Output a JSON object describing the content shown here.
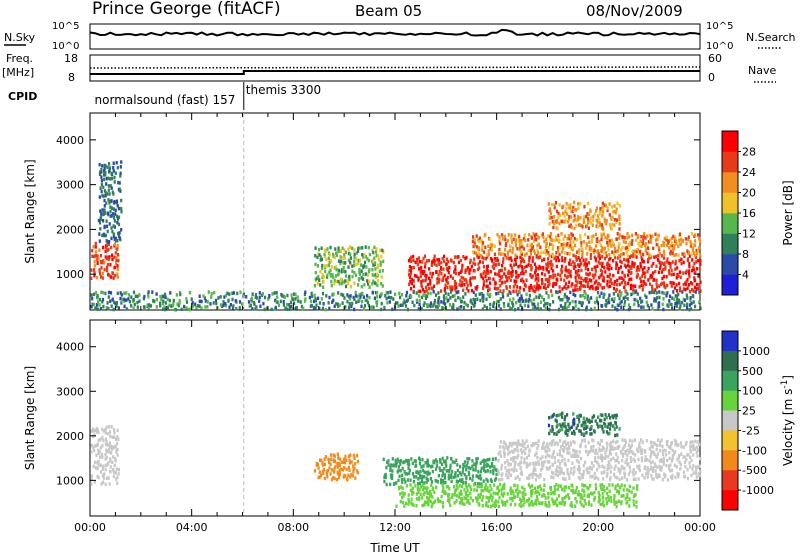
{
  "header": {
    "station": "Prince George (fitACF)",
    "beam": "Beam 05",
    "date": "08/Nov/2009"
  },
  "status_panels": {
    "nsky_label": "N.Sky",
    "nsearch_label": "N.Search",
    "noise_ticks": [
      "10^5",
      "10^0"
    ],
    "freq_label": "Freq.",
    "freq_unit": "[MHz]",
    "freq_ticks": [
      "18",
      "8"
    ],
    "nave_label": "Nave",
    "nave_ticks": [
      "60",
      "0"
    ],
    "cpid_label": "CPID",
    "cpid_entries": [
      {
        "text": "normalsound (fast) 157",
        "start_hour": 0.1
      },
      {
        "text": "themis 3300",
        "start_hour": 6.05
      }
    ]
  },
  "chart_data": [
    {
      "type": "heatmap",
      "name": "power",
      "xlabel": "",
      "ylabel": "Slant Range [km]",
      "xlim": [
        0,
        24
      ],
      "ylim": [
        200,
        4600
      ],
      "yticks": [
        1000,
        2000,
        3000,
        4000
      ],
      "colorbar": {
        "label": "Power [dB]",
        "ticks": [
          4,
          8,
          12,
          16,
          20,
          24,
          28
        ],
        "range": [
          0,
          32
        ],
        "colors": [
          "#1e20d8",
          "#2c4aa8",
          "#2f7f5a",
          "#56b84c",
          "#f0c229",
          "#f18e1f",
          "#e63a1a",
          "#ff0000"
        ]
      },
      "regions": [
        {
          "t0": 0.0,
          "t1": 1.1,
          "r0": 900,
          "r1": 1700,
          "level": 26
        },
        {
          "t0": 0.3,
          "t1": 1.2,
          "r0": 1700,
          "r1": 3500,
          "level": 8
        },
        {
          "t0": 8.8,
          "t1": 11.5,
          "r0": 700,
          "r1": 1600,
          "level": 14
        },
        {
          "t0": 12.5,
          "t1": 24.0,
          "r0": 600,
          "r1": 1400,
          "level": 28
        },
        {
          "t0": 15.0,
          "t1": 24.0,
          "r0": 1400,
          "r1": 1900,
          "level": 22
        },
        {
          "t0": 18.0,
          "t1": 20.8,
          "r0": 2000,
          "r1": 2600,
          "level": 22
        },
        {
          "t0": 0.0,
          "t1": 24.0,
          "r0": 200,
          "r1": 600,
          "level": 10
        }
      ]
    },
    {
      "type": "heatmap",
      "name": "velocity",
      "xlabel": "Time UT",
      "ylabel": "Slant Range [km]",
      "xlim": [
        0,
        24
      ],
      "ylim": [
        200,
        4600
      ],
      "xticks": [
        "00:00",
        "04:00",
        "08:00",
        "12:00",
        "16:00",
        "20:00",
        "00:00"
      ],
      "yticks": [
        1000,
        2000,
        3000,
        4000
      ],
      "colorbar": {
        "label": "Velocity [m s^-1]",
        "ticks": [
          1000,
          500,
          100,
          25,
          -25,
          -100,
          -500,
          -1000
        ],
        "colors": [
          "#2231c8",
          "#2f6e4f",
          "#3aa35c",
          "#66d43a",
          "#c8c8c8",
          "#f2c230",
          "#f08a1a",
          "#e83a20",
          "#ff0000"
        ]
      },
      "regions": [
        {
          "t0": 0.0,
          "t1": 1.1,
          "r0": 900,
          "r1": 2200,
          "level": 0
        },
        {
          "t0": 8.8,
          "t1": 10.5,
          "r0": 1000,
          "r1": 1600,
          "level": -300
        },
        {
          "t0": 11.5,
          "t1": 16.0,
          "r0": 900,
          "r1": 1500,
          "level": 200
        },
        {
          "t0": 12.0,
          "t1": 21.5,
          "r0": 400,
          "r1": 900,
          "level": 50
        },
        {
          "t0": 16.0,
          "t1": 24.0,
          "r0": 1000,
          "r1": 1900,
          "level": 0
        },
        {
          "t0": 18.0,
          "t1": 20.8,
          "r0": 2000,
          "r1": 2500,
          "level": 700
        }
      ]
    }
  ],
  "colors": {
    "axis": "#000000",
    "cpid_divider": "#bbbbbb"
  }
}
